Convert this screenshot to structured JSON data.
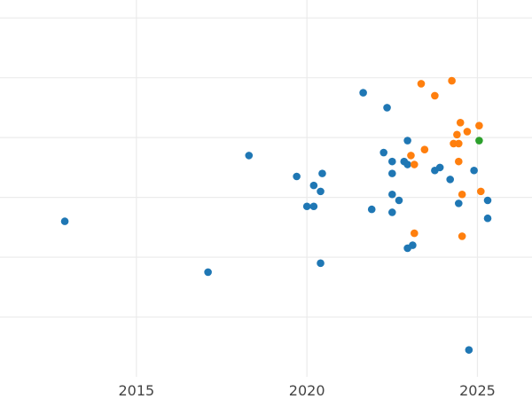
{
  "chart_data": {
    "type": "scatter",
    "title": "",
    "xlabel": "",
    "ylabel": "",
    "grid": true,
    "xlim": [
      2011.0,
      2026.6
    ],
    "ylim": [
      0.0,
      6.3
    ],
    "xticks": [
      2015,
      2020,
      2025
    ],
    "xtick_labels": [
      "2015",
      "2020",
      "2025"
    ],
    "yticks": [
      1,
      2,
      3,
      4,
      5,
      6
    ],
    "series": [
      {
        "color": "#1f77b4",
        "points": [
          [
            2012.9,
            2.6
          ],
          [
            2017.1,
            1.75
          ],
          [
            2018.3,
            3.7
          ],
          [
            2019.7,
            3.35
          ],
          [
            2020.0,
            2.85
          ],
          [
            2020.2,
            3.2
          ],
          [
            2020.2,
            2.85
          ],
          [
            2020.4,
            3.1
          ],
          [
            2020.4,
            1.9
          ],
          [
            2020.45,
            3.4
          ],
          [
            2021.65,
            4.75
          ],
          [
            2021.9,
            2.8
          ],
          [
            2022.25,
            3.75
          ],
          [
            2022.35,
            4.5
          ],
          [
            2022.5,
            3.6
          ],
          [
            2022.5,
            3.4
          ],
          [
            2022.5,
            3.05
          ],
          [
            2022.5,
            2.75
          ],
          [
            2022.7,
            2.95
          ],
          [
            2022.85,
            3.6
          ],
          [
            2022.95,
            3.55
          ],
          [
            2022.95,
            3.95
          ],
          [
            2022.95,
            2.15
          ],
          [
            2023.1,
            2.2
          ],
          [
            2023.75,
            3.45
          ],
          [
            2023.9,
            3.5
          ],
          [
            2024.2,
            3.3
          ],
          [
            2024.45,
            2.9
          ],
          [
            2024.75,
            0.45
          ],
          [
            2024.9,
            3.45
          ],
          [
            2025.3,
            2.95
          ],
          [
            2025.3,
            2.65
          ]
        ]
      },
      {
        "color": "#ff7f0e",
        "points": [
          [
            2023.05,
            3.7
          ],
          [
            2023.15,
            3.55
          ],
          [
            2023.15,
            2.4
          ],
          [
            2023.35,
            4.9
          ],
          [
            2023.45,
            3.8
          ],
          [
            2023.75,
            4.7
          ],
          [
            2024.25,
            4.95
          ],
          [
            2024.3,
            3.9
          ],
          [
            2024.4,
            4.05
          ],
          [
            2024.45,
            3.9
          ],
          [
            2024.45,
            3.6
          ],
          [
            2024.5,
            4.25
          ],
          [
            2024.55,
            3.05
          ],
          [
            2024.55,
            2.35
          ],
          [
            2024.7,
            4.1
          ],
          [
            2025.05,
            4.2
          ],
          [
            2025.1,
            3.1
          ]
        ]
      },
      {
        "color": "#2ca02c",
        "points": [
          [
            2025.05,
            3.95
          ]
        ]
      }
    ]
  }
}
